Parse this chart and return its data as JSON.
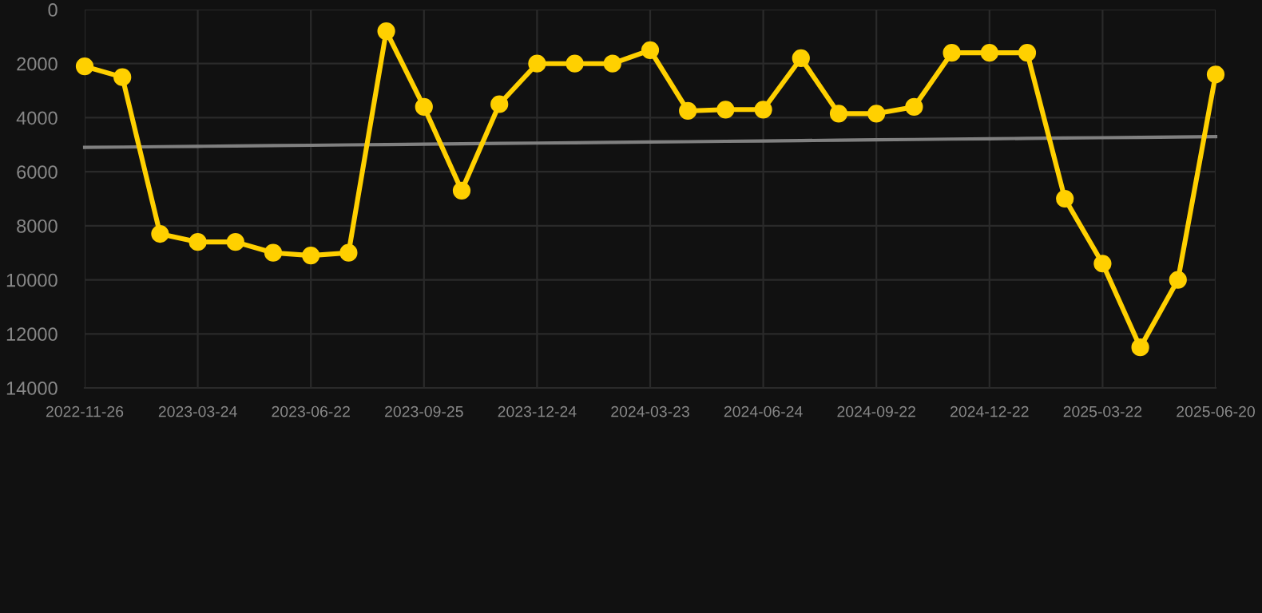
{
  "chart_data": {
    "type": "line",
    "categories": [
      "2022-11-26",
      null,
      null,
      "2023-03-24",
      null,
      null,
      "2023-06-22",
      null,
      null,
      "2023-09-25",
      null,
      null,
      "2023-12-24",
      null,
      null,
      "2024-03-23",
      null,
      null,
      "2024-06-24",
      null,
      null,
      "2024-09-22",
      null,
      null,
      "2024-12-22",
      null,
      null,
      "2025-03-22",
      null,
      null,
      "2025-06-20"
    ],
    "series": [
      {
        "color": "#ffd000",
        "marker": "circle",
        "values": [
          2100,
          2500,
          8300,
          8600,
          8600,
          9000,
          9100,
          9000,
          800,
          3600,
          6700,
          3500,
          2000,
          2000,
          2000,
          1500,
          3750,
          3700,
          3700,
          1800,
          3850,
          3850,
          3600,
          1600,
          1600,
          1600,
          7000,
          9400,
          12500,
          10000,
          2400
        ]
      },
      {
        "color": "#808080",
        "marker": "none",
        "values": [
          5100,
          5087,
          5073,
          5060,
          5047,
          5033,
          5020,
          5007,
          4993,
          4980,
          4967,
          4953,
          4940,
          4927,
          4913,
          4900,
          4887,
          4873,
          4860,
          4847,
          4833,
          4820,
          4807,
          4793,
          4780,
          4767,
          4753,
          4740,
          4727,
          4713,
          4700
        ]
      }
    ],
    "ylim": [
      14000,
      0
    ],
    "yticks": [
      0,
      2000,
      4000,
      6000,
      8000,
      10000,
      12000,
      14000
    ],
    "grid": true
  }
}
